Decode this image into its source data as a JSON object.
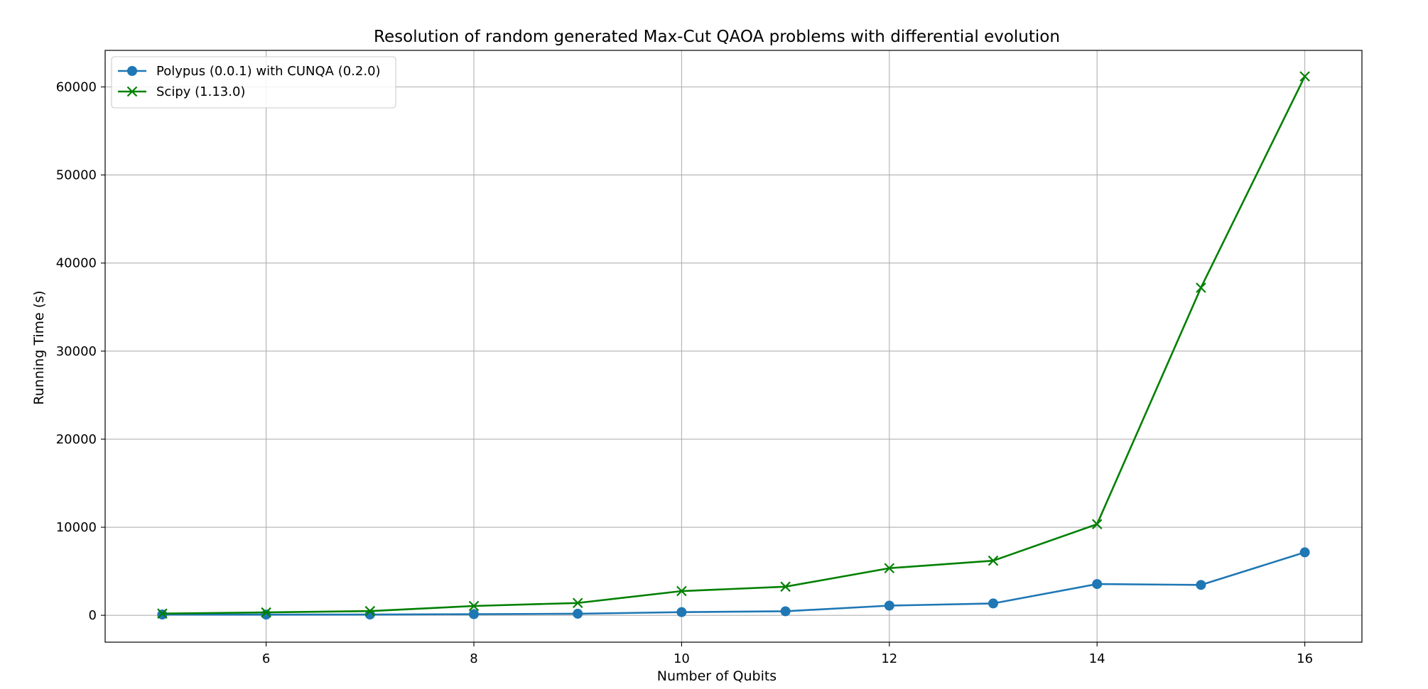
{
  "chart_data": {
    "type": "line",
    "title": "Resolution of random generated Max-Cut QAOA problems with differential evolution",
    "xlabel": "Number of Qubits",
    "ylabel": "Running Time (s)",
    "xlim": [
      4.45,
      16.55
    ],
    "ylim": [
      -3050,
      64150
    ],
    "xticks": [
      6,
      8,
      10,
      12,
      14,
      16
    ],
    "yticks": [
      0,
      10000,
      20000,
      30000,
      40000,
      50000,
      60000
    ],
    "xtick_labels": [
      "6",
      "8",
      "10",
      "12",
      "14",
      "16"
    ],
    "ytick_labels": [
      "0",
      "10000",
      "20000",
      "30000",
      "40000",
      "50000",
      "60000"
    ],
    "grid": true,
    "legend_position": "top-left",
    "x": [
      5,
      6,
      7,
      8,
      9,
      10,
      11,
      12,
      13,
      14,
      15,
      16
    ],
    "series": [
      {
        "name": "Polypus (0.0.1) with CUNQA (0.2.0)",
        "color": "#1f77b4",
        "marker": "circle",
        "values": [
          90,
          80,
          90,
          130,
          180,
          360,
          460,
          1100,
          1350,
          3550,
          3450,
          7150
        ]
      },
      {
        "name": "Scipy (1.13.0)",
        "color": "#008000",
        "marker": "x",
        "values": [
          200,
          330,
          480,
          1060,
          1400,
          2750,
          3250,
          5350,
          6200,
          10350,
          37200,
          61200
        ]
      }
    ]
  }
}
